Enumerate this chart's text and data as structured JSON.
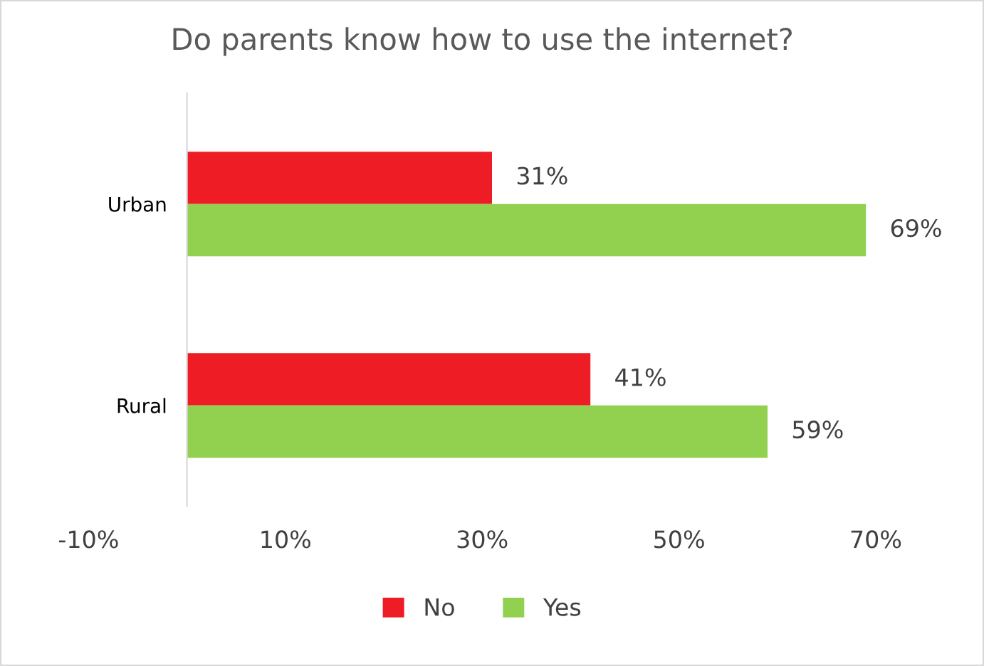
{
  "chart_data": {
    "type": "bar",
    "orientation": "horizontal",
    "title": "Do parents know how to use the internet?",
    "categories": [
      "Urban",
      "Rural"
    ],
    "series": [
      {
        "name": "No",
        "color": "#ee1c25",
        "values": [
          31,
          41
        ],
        "value_labels": [
          "31%",
          "41%"
        ]
      },
      {
        "name": "Yes",
        "color": "#92d050",
        "values": [
          69,
          59
        ],
        "value_labels": [
          "69%",
          "59%"
        ]
      }
    ],
    "xlim": [
      -10,
      70
    ],
    "xticks": [
      {
        "value": -10,
        "label": "-10%"
      },
      {
        "value": 10,
        "label": "10%"
      },
      {
        "value": 30,
        "label": "30%"
      },
      {
        "value": 50,
        "label": "50%"
      },
      {
        "value": 70,
        "label": "70%"
      }
    ],
    "grid": false,
    "legend": "bottom"
  }
}
